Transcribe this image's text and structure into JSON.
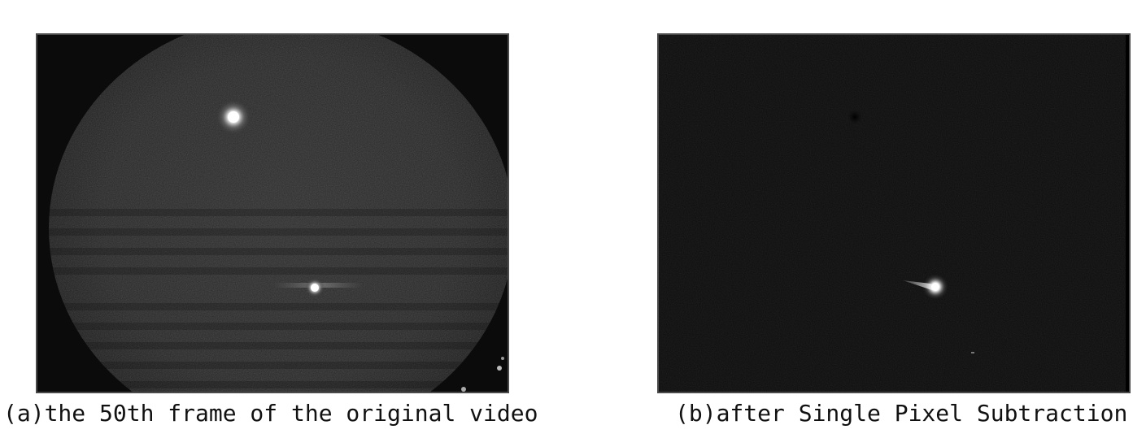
{
  "panels": [
    {
      "id": "a",
      "caption": "(a)the 50th frame of the original video"
    },
    {
      "id": "b",
      "caption": "(b)after Single Pixel Subtraction"
    }
  ]
}
